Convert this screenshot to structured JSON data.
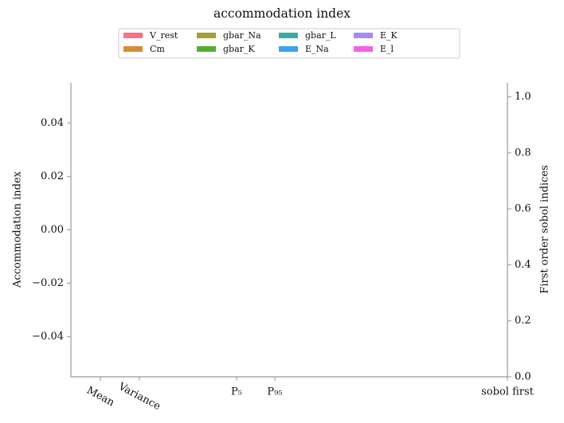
{
  "chart_data": {
    "type": "bar",
    "title": "accommodation index",
    "ylabel": "Accommodation index",
    "y2label": "First order sobol indices",
    "categories": [
      "Mean",
      "Variance",
      "P₅",
      "P₉₅",
      "sobol first"
    ],
    "xlim": [
      -0.755,
      10.43
    ],
    "xticks": [
      {
        "value": 0,
        "label": "Mean"
      },
      {
        "value": 1,
        "label": "Variance"
      },
      {
        "value": 3.49,
        "label": "P₅"
      },
      {
        "value": 4.47,
        "label": "P₉₅"
      },
      {
        "value": 10.43,
        "label": "sobol first"
      }
    ],
    "ylim": [
      -0.055,
      0.055
    ],
    "yticks": [
      {
        "value": -0.04,
        "label": "−0.04"
      },
      {
        "value": -0.02,
        "label": "−0.02"
      },
      {
        "value": 0,
        "label": "0.00"
      },
      0.02,
      0.04
    ],
    "y2lim": [
      0,
      1.05
    ],
    "y2ticks": [
      {
        "value": 0,
        "label": "0.0"
      },
      0.2,
      0.4,
      0.6,
      0.8,
      {
        "value": 1,
        "label": "1.0"
      }
    ],
    "legend": "upper center",
    "series": [
      {
        "name": "V_rest",
        "color": "#f77189"
      },
      {
        "name": "Cm",
        "color": "#d58c32"
      },
      {
        "name": "gbar_Na",
        "color": "#a4a031"
      },
      {
        "name": "gbar_K",
        "color": "#50b131"
      },
      {
        "name": "gbar_L",
        "color": "#36ada4"
      },
      {
        "name": "E_Na",
        "color": "#3ba3ec"
      },
      {
        "name": "E_K",
        "color": "#a48cf4"
      },
      {
        "name": "E_l",
        "color": "#f561dd"
      }
    ]
  }
}
